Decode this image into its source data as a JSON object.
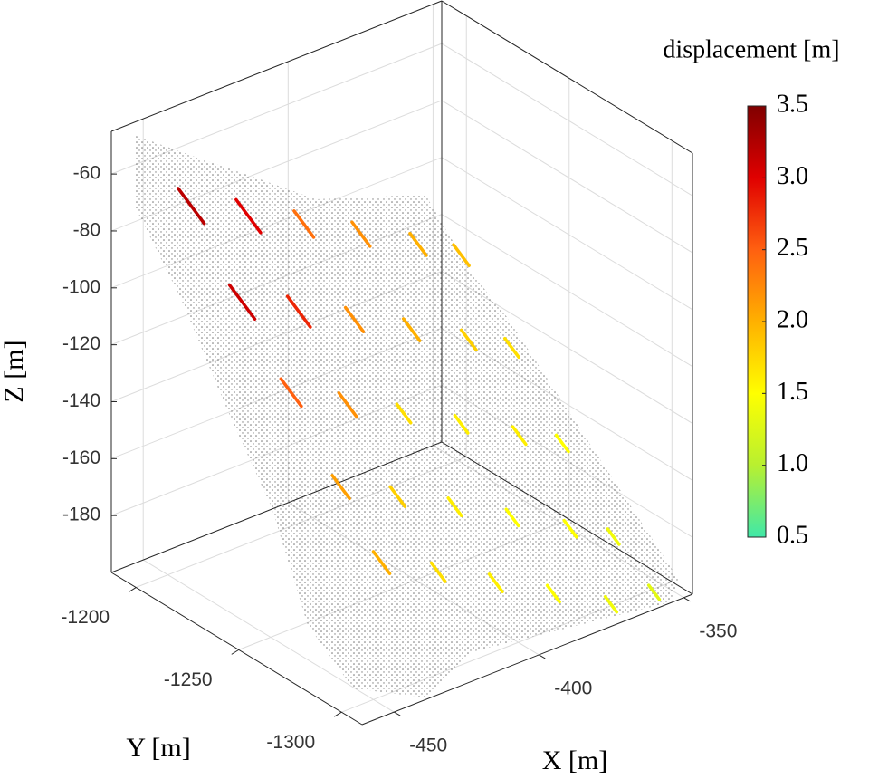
{
  "chart_data": {
    "type": "quiver3d",
    "xlabel": "X [m]",
    "ylabel": "Y [m]",
    "zlabel": "Z [m]",
    "colorbar_label": "displacement [m]",
    "xlim": [
      -461,
      -347
    ],
    "ylim": [
      -1310,
      -1188
    ],
    "zlim": [
      -200,
      -45
    ],
    "xticks": [
      -450,
      -400,
      -350
    ],
    "yticks": [
      -1300,
      -1250,
      -1200
    ],
    "zticks": [
      -180,
      -160,
      -140,
      -120,
      -100,
      -80,
      -60
    ],
    "clim": [
      0.5,
      3.5
    ],
    "cticks": [
      0.5,
      {
        "value": 1,
        "label": "1.0"
      },
      1.5,
      {
        "value": 2,
        "label": "2.0"
      },
      2.5,
      {
        "value": 3,
        "label": "3.0"
      },
      3.5
    ],
    "colormap": [
      "#40e8a8",
      "#b8f030",
      "#ffff00",
      "#ffb000",
      "#ff6010",
      "#e00000",
      "#800000"
    ],
    "grid": true,
    "points": {
      "x": [
        -450,
        -430,
        -410,
        -390,
        -370,
        -355,
        -450,
        -430,
        -410,
        -390,
        -370,
        -355,
        -450,
        -430,
        -410,
        -390,
        -370,
        -355,
        -450,
        -430,
        -410,
        -390,
        -370,
        -355,
        -450,
        -430,
        -410,
        -390,
        -370,
        -355
      ],
      "y": [
        -1205,
        -1205,
        -1205,
        -1205,
        -1205,
        -1205,
        -1230,
        -1230,
        -1230,
        -1230,
        -1230,
        -1230,
        -1255,
        -1255,
        -1255,
        -1255,
        -1255,
        -1255,
        -1280,
        -1280,
        -1280,
        -1280,
        -1280,
        -1280,
        -1300,
        -1300,
        -1300,
        -1300,
        -1300,
        -1300
      ],
      "z": [
        -62,
        -74,
        -86,
        -98,
        -110,
        -120,
        -85,
        -97,
        -109,
        -121,
        -133,
        -142,
        -107,
        -120,
        -132,
        -144,
        -156,
        -165,
        -130,
        -142,
        -154,
        -166,
        -178,
        -187,
        -148,
        -160,
        -172,
        -184,
        -196,
        -198
      ],
      "displacement": [
        3.2,
        3.0,
        2.4,
        2.2,
        2.0,
        1.9,
        3.1,
        2.8,
        2.2,
        2.0,
        1.8,
        1.7,
        2.5,
        2.2,
        1.7,
        1.6,
        1.6,
        1.5,
        2.1,
        1.8,
        1.6,
        1.5,
        1.5,
        1.4,
        2.0,
        1.7,
        1.6,
        1.5,
        1.4,
        1.3
      ]
    }
  }
}
